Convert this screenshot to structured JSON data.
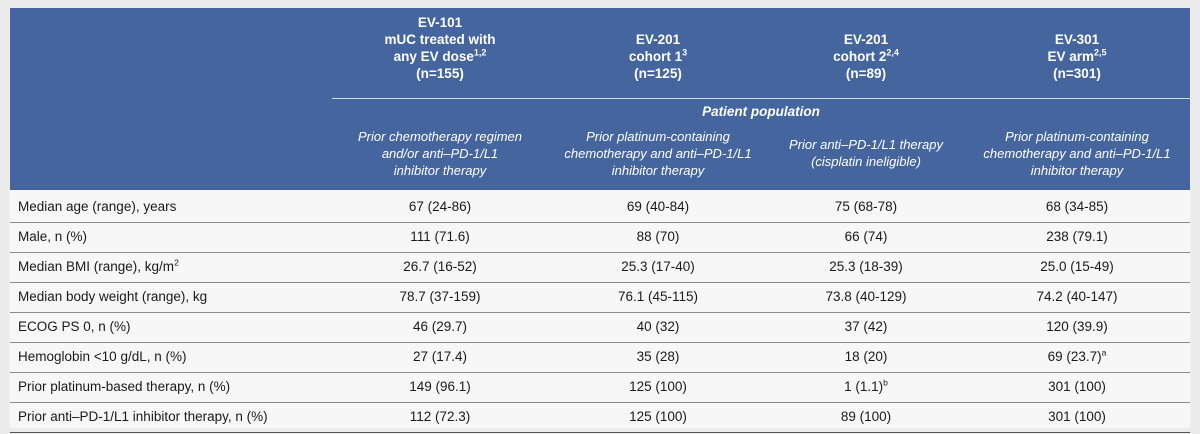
{
  "columns": [
    {
      "line1": "EV-101",
      "line2": "mUC treated with",
      "line3": "any EV dose",
      "line3_sup": "1,2",
      "n": "(n=155)"
    },
    {
      "line1": "EV-201",
      "line2": "cohort 1",
      "line2_sup": "3",
      "n": "(n=125)"
    },
    {
      "line1": "EV-201",
      "line2": "cohort 2",
      "line2_sup": "2,4",
      "n": "(n=89)"
    },
    {
      "line1": "EV-301",
      "line2": "EV arm",
      "line2_sup": "2,5",
      "n": "(n=301)"
    }
  ],
  "patient_population_label": "Patient population",
  "populations": [
    [
      "Prior chemotherapy regimen",
      "and/or anti–PD-1/L1",
      "inhibitor therapy"
    ],
    [
      "Prior platinum-containing",
      "chemotherapy and anti–PD-1/L1",
      "inhibitor therapy"
    ],
    [
      "Prior anti–PD-1/L1 therapy",
      "(cisplatin ineligible)"
    ],
    [
      "Prior platinum-containing",
      "chemotherapy and anti–PD-1/L1",
      "inhibitor therapy"
    ]
  ],
  "rows": [
    {
      "label": "Median age (range), years",
      "values": [
        "67 (24-86)",
        "69 (40-84)",
        "75 (68-78)",
        "68 (34-85)"
      ]
    },
    {
      "label": "Male, n (%)",
      "values": [
        "111 (71.6)",
        "88 (70)",
        "66 (74)",
        "238 (79.1)"
      ]
    },
    {
      "label": "Median BMI (range), kg/m",
      "label_sup": "2",
      "values": [
        "26.7 (16-52)",
        "25.3 (17-40)",
        "25.3 (18-39)",
        "25.0 (15-49)"
      ]
    },
    {
      "label": "Median body weight (range), kg",
      "values": [
        "78.7 (37-159)",
        "76.1 (45-115)",
        "73.8 (40-129)",
        "74.2 (40-147)"
      ]
    },
    {
      "label": "ECOG PS 0, n (%)",
      "values": [
        "46 (29.7)",
        "40 (32)",
        "37 (42)",
        "120 (39.9)"
      ]
    },
    {
      "label": "Hemoglobin <10 g/dL, n (%)",
      "values": [
        "27 (17.4)",
        "35 (28)",
        "18 (20)",
        "69 (23.7)"
      ],
      "value_sups": [
        "",
        "",
        "",
        "a"
      ]
    },
    {
      "label": "Prior platinum-based therapy, n (%)",
      "values": [
        "149 (96.1)",
        "125 (100)",
        "1 (1.1)",
        "301 (100)"
      ],
      "value_sups": [
        "",
        "",
        "b",
        ""
      ]
    },
    {
      "label": "Prior anti–PD-1/L1 inhibitor therapy, n (%)",
      "values": [
        "112 (72.3)",
        "125 (100)",
        "89 (100)",
        "301 (100)"
      ]
    }
  ]
}
